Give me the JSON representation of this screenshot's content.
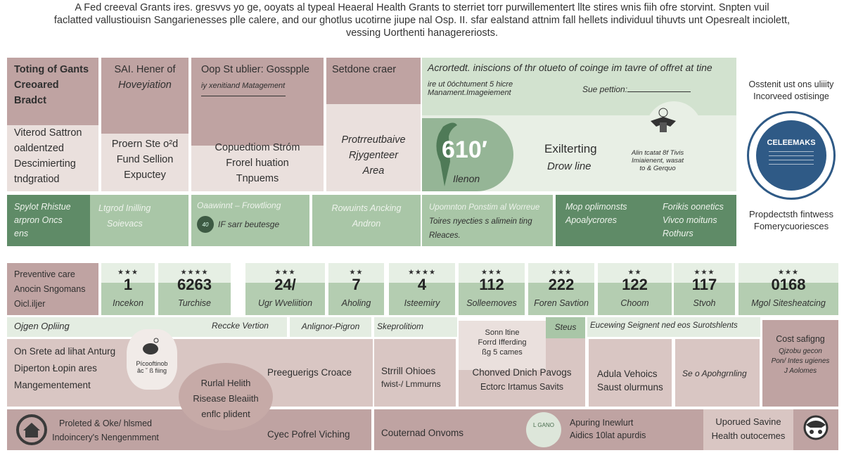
{
  "header": {
    "lines": [
      "A Fed creeval Grants ires. gresvvs yo ge, ooyats al typeal Heaeral Health Grants to sterriet torr purwillementert llte stires wnis fiih ofre storvint. Snpten vuil",
      "faclatted vallustiouisn Sangarienesses plle calere, and our ghotlus ucotirne jiupe nal Osp. II. sfar ealstand attnim fall hellets individuul tihuvts unt Opesrealt inciolett,",
      "vessing Uorthenti hanagereriosts."
    ]
  },
  "top_cards": [
    {
      "head": [
        "Toting of Gants",
        "Creoared",
        "Bradct"
      ],
      "body": [
        "Viterod Sattron",
        "oaldentzed",
        "Descimierting",
        "tndgratiod"
      ]
    },
    {
      "head": [
        "SAI. Hener of",
        "Hoveyiation"
      ],
      "body": [
        "Proern Ste o²d",
        "Fund Sellion",
        "Expuctey"
      ]
    },
    {
      "head": [
        "Oop St ublier: Gosspple",
        "iy xenitiand Matagement"
      ],
      "body": [
        "Copuedtiom Stróm",
        "Frorel huation",
        "Tnpuems"
      ]
    },
    {
      "head": [
        "Setdone craer"
      ],
      "body": [
        "Protrreutbaive",
        "Rjygenteer",
        "Area"
      ]
    }
  ],
  "feature": {
    "title": "Acrortedt. iniscions of thr otueto of coinge im tavre of offret at tine",
    "sub": [
      "ire ut 0óchtument 5 hicre",
      "Manament.Imageiement"
    ],
    "sue": "Sue pettion:",
    "big_number": "610′",
    "big_label": "Ilenon",
    "mid": [
      "Exilterting",
      "Drow line"
    ],
    "seal_text": [
      "Alin tcatat 8f Tivis",
      "Imiaienent, wasat",
      "to & Gerquo"
    ]
  },
  "right_col": {
    "top": [
      "Osstenit ust ons uliiity",
      "Incorveed ostisinge"
    ],
    "badge": "CELEEMAKS",
    "bottom": [
      "Propdectsth fintwess",
      "Fomerycuoriesces"
    ]
  },
  "green_row": [
    {
      "lines": [
        "Spylot Rhistue",
        "arpron Oncs",
        "ens"
      ]
    },
    {
      "lines": [
        "Ltgrod Inilling",
        "Soievacs"
      ]
    },
    {
      "lines": [
        "Oaawinnt – Frowtliong",
        "IF sarr beutesge"
      ],
      "icon_text": "40"
    },
    {
      "lines": [
        "Rowuints Ancking",
        "Andron"
      ]
    },
    {
      "lines": [
        "Upomnton Ponstim  al Worreue",
        "Toires nyecties s alimein ting",
        "Rleaces."
      ]
    },
    {
      "lines": [
        "Mop oplimonsts",
        "Apoalycrores",
        "Forikis oonetics",
        "Vivco moituns",
        "Rothurs"
      ]
    }
  ],
  "preventive": {
    "lines": [
      "Preventive care",
      "Anocin Sngomans",
      "Oicl.iljer"
    ]
  },
  "stats": [
    {
      "stars": "★★★",
      "value": "1",
      "label": "Incekon"
    },
    {
      "stars": "★★★★",
      "value": "6263",
      "label": "Turchise"
    },
    {
      "stars": "★★★",
      "value": "24/",
      "label": "Ugr Wveliition"
    },
    {
      "stars": "★★",
      "value": "7",
      "label": "Aholing"
    },
    {
      "stars": "★★★★",
      "value": "4",
      "label": "Isteemiry"
    },
    {
      "stars": "★★★",
      "value": "112",
      "label": "Solleemoves"
    },
    {
      "stars": "★★★",
      "value": "222",
      "label": "Foren Savtion"
    },
    {
      "stars": "★★",
      "value": "122",
      "label": "Choom"
    },
    {
      "stars": "★★★",
      "value": "117",
      "label": "Stvoh"
    },
    {
      "stars": "★★★",
      "value": "0168",
      "label": "Mgol Sitesheatcing"
    }
  ],
  "strip": {
    "a": "Ojgen Opliing",
    "b": "Reccke Vertion",
    "c": "Anlignor-Pigron",
    "d": "Skeprolitiom",
    "e": "Steus",
    "f": "Eucewing Seignent ned eos Surotshlents"
  },
  "mid": {
    "left": [
      "On Srete ad lihat Anturg",
      "Diperton Łopin ares",
      "Mangementement"
    ],
    "bubble": [
      "Pícooftinob",
      "âc ˘ ß fiing"
    ],
    "center": "Preeguerigs Croace",
    "blob": [
      "Rurlal Helith",
      "Risease Bleaiith",
      "enflc plident"
    ],
    "c3": [
      "Strrill Ohioes",
      "fwist-/ Lmmurns"
    ],
    "c4top": [
      "Sonn ltine",
      "Forrd Ifferding",
      "ßg 5 cames"
    ],
    "c4": [
      "Chonved Dnich Pavogs",
      "Ectorc Irtamus Savits"
    ],
    "c5": [
      "Adula Vehoics",
      "Saust olurmuns"
    ],
    "c6": "Se o Apohgrnling",
    "c7": [
      "Cost safigng",
      "Qjzobu gecon",
      "Pon/ Intes ugienes",
      "J Aolomes"
    ]
  },
  "bottom": {
    "a": [
      "Proleted & Oke/ hlsmed",
      "Indoincery's Nengenmment"
    ],
    "b": "Cyec Pofrel Viching",
    "c": "Couternad Onvoms",
    "logo": "L GANO",
    "d": [
      "Apuring Inewlurt",
      "Aidics 10lat apurdis"
    ],
    "e": [
      "Uporued Savine",
      "Health outocemes"
    ]
  },
  "colors": {
    "mauve": "#bfa3a2",
    "pink": "#eae0dd",
    "light_green": "#e4ede2",
    "mid_green": "#a9c6a7",
    "dark_green": "#5f8b67",
    "seal_blue": "#2f5a86"
  }
}
